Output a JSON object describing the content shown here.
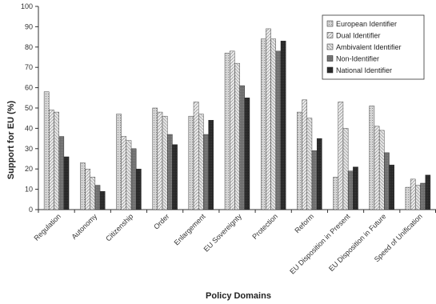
{
  "chart_data": {
    "type": "bar",
    "xlabel": "Policy Domains",
    "ylabel": "Support for EU (%)",
    "ylim": [
      0,
      100
    ],
    "yticks": [
      0,
      10,
      20,
      30,
      40,
      50,
      60,
      70,
      80,
      90,
      100
    ],
    "grid": false,
    "legend": "top-right",
    "categories": [
      "Regulation",
      "Autonomy",
      "Citizenship",
      "Order",
      "Enlargement",
      "EU Sovereignty",
      "Protection",
      "Reform",
      "EU Disposition in Present",
      "EU Disposition in Future",
      "Speed of Unification"
    ],
    "series": [
      {
        "name": "European Identifier",
        "color": "#c8c8c8",
        "values": [
          58,
          23,
          47,
          50,
          46,
          77,
          84,
          48,
          16,
          51,
          11
        ]
      },
      {
        "name": "Dual Identifier",
        "color": "#e0e0e0",
        "values": [
          49,
          20,
          36,
          48,
          53,
          78,
          89,
          54,
          53,
          41,
          15
        ]
      },
      {
        "name": "Ambivalent Identifier",
        "color": "#d8d8d8",
        "values": [
          48,
          16,
          34,
          46,
          47,
          72,
          84,
          45,
          40,
          39,
          12
        ]
      },
      {
        "name": "Non-Identifier",
        "color": "#777777",
        "values": [
          36,
          12,
          30,
          37,
          37,
          61,
          78,
          29,
          19,
          28,
          13
        ]
      },
      {
        "name": "National Identifier",
        "color": "#2e2e2e",
        "values": [
          26,
          9,
          20,
          32,
          44,
          55,
          83,
          35,
          21,
          22,
          17
        ]
      }
    ]
  }
}
